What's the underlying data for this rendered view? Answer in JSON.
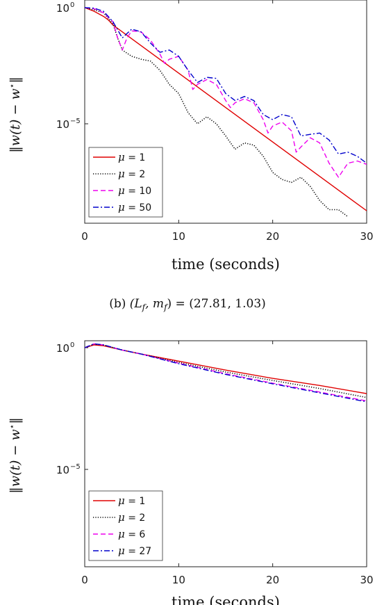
{
  "chart_data": [
    {
      "type": "line",
      "title": "",
      "xlabel": "time (seconds)",
      "ylabel": "‖w(t) − w*‖",
      "y_scale": "log",
      "xlim": [
        0,
        30
      ],
      "ylim": [
        1e-09,
        1.5
      ],
      "x_ticks": [
        "0",
        "10",
        "20",
        "30"
      ],
      "y_ticks": [
        {
          "base": "10",
          "exp": "0",
          "value": 1
        },
        {
          "base": "10",
          "exp": "−5",
          "value": 1e-05
        }
      ],
      "grid": false,
      "legend_position": "bottom-left",
      "series": [
        {
          "name": "μ = 1",
          "mu": "1",
          "color": "#e00000",
          "dash": "solid",
          "x": [
            0,
            1,
            2,
            2.5,
            3,
            30
          ],
          "y": [
            1,
            0.7,
            0.42,
            0.3,
            0.18,
            1.8e-09
          ]
        },
        {
          "name": "μ = 2",
          "mu": "2",
          "color": "#000000",
          "dash": "dotted",
          "x": [
            0,
            1,
            2,
            3,
            3.5,
            4,
            5,
            6,
            7,
            8,
            9,
            10,
            11,
            12,
            13,
            14,
            15,
            16,
            17,
            18,
            19,
            20,
            21,
            22,
            23,
            24,
            25,
            26,
            27,
            28
          ],
          "y": [
            1,
            0.8,
            0.6,
            0.2,
            0.05,
            0.015,
            0.008,
            0.006,
            0.005,
            0.002,
            0.0005,
            0.0002,
            3e-05,
            1e-05,
            2e-05,
            1e-05,
            3e-06,
            8e-07,
            1.5e-06,
            1.2e-06,
            4e-07,
            8e-08,
            4e-08,
            3e-08,
            5e-08,
            2e-08,
            5e-09,
            2e-09,
            2e-09,
            1e-09
          ]
        },
        {
          "name": "μ = 10",
          "mu": "10",
          "color": "#ee00ee",
          "dash": "dashed",
          "x": [
            0,
            1,
            2,
            3,
            3.5,
            4,
            4.5,
            5,
            6,
            7,
            8,
            8.5,
            9,
            10,
            11,
            11.5,
            12,
            13,
            14,
            15,
            15.5,
            16,
            17,
            18,
            19,
            19.5,
            20,
            21,
            22,
            22.5,
            23,
            24,
            25,
            26,
            27,
            28,
            29,
            30
          ],
          "y": [
            1,
            0.9,
            0.6,
            0.25,
            0.05,
            0.015,
            0.05,
            0.1,
            0.09,
            0.04,
            0.01,
            0.004,
            0.006,
            0.008,
            0.002,
            0.0003,
            0.0005,
            0.0008,
            0.0005,
            0.0001,
            5e-05,
            8e-05,
            0.00012,
            8e-05,
            1.5e-05,
            4e-06,
            8e-06,
            1.2e-05,
            5e-06,
            6e-07,
            1e-06,
            2.5e-06,
            1.5e-06,
            2e-07,
            5e-08,
            2e-07,
            2.5e-07,
            1.8e-07
          ]
        },
        {
          "name": "μ = 50",
          "mu": "50",
          "color": "#0000cc",
          "dash": "dashdot",
          "x": [
            0,
            1,
            2,
            3,
            4,
            5,
            6,
            7,
            8,
            9,
            10,
            11,
            12,
            13,
            14,
            15,
            16,
            17,
            18,
            19,
            20,
            21,
            22,
            23,
            24,
            25,
            26,
            27,
            28,
            29,
            30
          ],
          "y": [
            1,
            0.95,
            0.7,
            0.25,
            0.05,
            0.12,
            0.09,
            0.03,
            0.012,
            0.015,
            0.008,
            0.002,
            0.0006,
            0.001,
            0.0009,
            0.0002,
            0.0001,
            0.00015,
            0.0001,
            2.5e-05,
            1.5e-05,
            2.5e-05,
            2e-05,
            3e-06,
            3.5e-06,
            4e-06,
            2e-06,
            5e-07,
            6e-07,
            4e-07,
            2e-07
          ]
        }
      ]
    },
    {
      "type": "line",
      "title": "",
      "xlabel": "time (seconds)",
      "ylabel": "‖w(t) − w*‖",
      "y_scale": "log",
      "xlim": [
        0,
        30
      ],
      "ylim": [
        1e-09,
        1.5
      ],
      "x_ticks": [
        "0",
        "10",
        "20",
        "30"
      ],
      "y_ticks": [
        {
          "base": "10",
          "exp": "0",
          "value": 1
        },
        {
          "base": "10",
          "exp": "−5",
          "value": 1e-05
        }
      ],
      "grid": false,
      "legend_position": "bottom-left",
      "series": [
        {
          "name": "μ = 1",
          "mu": "1",
          "color": "#e00000",
          "dash": "solid",
          "x": [
            0,
            1,
            2,
            4,
            6,
            10,
            15,
            20,
            25,
            30
          ],
          "y": [
            1,
            1.3,
            1.2,
            0.8,
            0.55,
            0.28,
            0.12,
            0.055,
            0.028,
            0.013
          ]
        },
        {
          "name": "μ = 2",
          "mu": "2",
          "color": "#000000",
          "dash": "dotted",
          "x": [
            0,
            1,
            2,
            4,
            6,
            10,
            15,
            20,
            25,
            30
          ],
          "y": [
            1,
            1.4,
            1.3,
            0.8,
            0.55,
            0.25,
            0.1,
            0.045,
            0.021,
            0.009
          ]
        },
        {
          "name": "μ = 6",
          "mu": "6",
          "color": "#ee00ee",
          "dash": "dashed",
          "x": [
            0,
            1,
            2,
            4,
            6,
            10,
            15,
            20,
            25,
            30
          ],
          "y": [
            1,
            1.45,
            1.3,
            0.8,
            0.55,
            0.23,
            0.085,
            0.035,
            0.015,
            0.0065
          ]
        },
        {
          "name": "μ = 27",
          "mu": "27",
          "color": "#0000cc",
          "dash": "dashdot",
          "x": [
            0,
            1,
            2,
            4,
            6,
            10,
            15,
            20,
            25,
            30
          ],
          "y": [
            1,
            1.45,
            1.3,
            0.8,
            0.55,
            0.22,
            0.08,
            0.033,
            0.014,
            0.006
          ]
        }
      ]
    }
  ],
  "caption": {
    "prefix": "(b)",
    "math": "(L_f, m_f) = (27.81, 1.03)"
  }
}
